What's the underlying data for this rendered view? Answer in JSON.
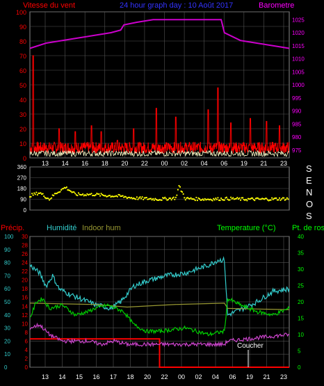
{
  "header": {
    "left_title": "Vitesse du vent",
    "center_title": "24 hour graph day : 10 Août 2017",
    "right_title": "Barometre"
  },
  "direction_letters": [
    "S",
    "E",
    "N",
    "O",
    "S"
  ],
  "colors": {
    "red": "#ff0000",
    "magenta": "#ff00ff",
    "blue": "#3333ff",
    "yellow": "#ffff00",
    "white": "#ffffff",
    "cyan": "#00e0e0",
    "green": "#00ff00",
    "olive": "#999933",
    "grid": "#8a8a8a"
  },
  "chart_data": [
    {
      "type": "line",
      "title": "24 hour graph day : 10 Août 2017",
      "x_tick_labels": [
        "13",
        "14",
        "16",
        "18",
        "20",
        "22",
        "00",
        "02",
        "04",
        "06",
        "19",
        "21",
        "23"
      ],
      "left_axis": {
        "label": "Vitesse du vent",
        "ticks": [
          0,
          10,
          20,
          30,
          40,
          50,
          60,
          70,
          80,
          90,
          100
        ],
        "range": [
          0,
          100
        ]
      },
      "right_axis": {
        "label": "Barometre",
        "ticks": [
          975,
          980,
          985,
          990,
          995,
          1000,
          1005,
          1010,
          1015,
          1020,
          1025
        ],
        "range": [
          972,
          1028
        ]
      },
      "series": [
        {
          "name": "Barometre",
          "color": "#cc00cc",
          "points": [
            [
              0,
              1014
            ],
            [
              5,
              1016
            ],
            [
              10,
              1017
            ],
            [
              15,
              1018
            ],
            [
              20,
              1019
            ],
            [
              25,
              1020
            ],
            [
              28,
              1021
            ],
            [
              29,
              1023
            ],
            [
              33,
              1024
            ],
            [
              38,
              1025
            ],
            [
              42,
              1025
            ],
            [
              50,
              1025
            ],
            [
              55,
              1025
            ],
            [
              59,
              1025
            ],
            [
              60,
              1020
            ],
            [
              65,
              1017
            ],
            [
              70,
              1016
            ],
            [
              75,
              1015
            ],
            [
              80,
              1014
            ]
          ]
        },
        {
          "name": "Vitesse du vent",
          "color": "#ff0000",
          "peaks": [
            [
              1,
              70
            ],
            [
              9,
              20
            ],
            [
              14,
              18
            ],
            [
              19,
              22
            ],
            [
              22,
              18
            ],
            [
              27,
              12
            ],
            [
              32,
              20
            ],
            [
              39,
              34
            ],
            [
              45,
              28
            ],
            [
              55,
              33
            ],
            [
              58,
              48
            ],
            [
              62,
              24
            ],
            [
              68,
              27
            ],
            [
              73,
              25
            ],
            [
              77,
              22
            ]
          ]
        }
      ]
    },
    {
      "type": "scatter",
      "y_ticks": [
        0,
        90,
        180,
        270,
        360
      ],
      "range": [
        0,
        360
      ],
      "series": [
        {
          "name": "S E N O S",
          "color": "#ffff00",
          "values": [
            [
              0,
              120
            ],
            [
              3,
              145
            ],
            [
              6,
              90
            ],
            [
              8,
              140
            ],
            [
              11,
              190
            ],
            [
              14,
              130
            ],
            [
              20,
              130
            ],
            [
              24,
              120
            ],
            [
              28,
              115
            ],
            [
              32,
              100
            ],
            [
              36,
              95
            ],
            [
              40,
              90
            ],
            [
              45,
              100
            ],
            [
              46,
              200
            ],
            [
              48,
              95
            ],
            [
              55,
              90
            ],
            [
              62,
              95
            ],
            [
              66,
              90
            ],
            [
              72,
              90
            ],
            [
              80,
              95
            ]
          ]
        }
      ]
    },
    {
      "type": "line",
      "legend": [
        "Précip.",
        "Humidité",
        "Indoor hum",
        "Temperature (°C)",
        "Pt. de rosée"
      ],
      "x_tick_labels": [
        "13",
        "14",
        "15",
        "16",
        "17",
        "18",
        "20",
        "22",
        "00",
        "02",
        "04",
        "06",
        "19",
        "21",
        "23"
      ],
      "annotation": "Coucher",
      "y_ticks_precip": [
        0,
        2,
        4,
        6,
        8,
        10,
        12,
        14,
        16,
        18,
        20,
        22,
        24,
        26,
        28,
        30
      ],
      "y_ticks_humidity": [
        0,
        10,
        20,
        30,
        40,
        50,
        60,
        70,
        80,
        90,
        100
      ],
      "y_ticks_temp": [
        0,
        5,
        10,
        15,
        20,
        25,
        30,
        35,
        40
      ],
      "series": [
        {
          "name": "Précip.",
          "color": "#ff0000",
          "points": [
            [
              0,
              6.5
            ],
            [
              40,
              6.5
            ],
            [
              40,
              0
            ],
            [
              80,
              0
            ]
          ]
        },
        {
          "name": "Humidité",
          "color": "#33cccc",
          "points": [
            [
              0,
              78
            ],
            [
              3,
              72
            ],
            [
              5,
              62
            ],
            [
              7,
              70
            ],
            [
              9,
              60
            ],
            [
              12,
              56
            ],
            [
              16,
              52
            ],
            [
              20,
              48
            ],
            [
              25,
              45
            ],
            [
              28,
              50
            ],
            [
              32,
              62
            ],
            [
              36,
              66
            ],
            [
              42,
              70
            ],
            [
              48,
              72
            ],
            [
              55,
              78
            ],
            [
              58,
              82
            ],
            [
              60,
              82
            ],
            [
              61,
              40
            ],
            [
              65,
              44
            ],
            [
              70,
              50
            ],
            [
              75,
              58
            ],
            [
              80,
              60
            ]
          ]
        },
        {
          "name": "Indoor hum",
          "color": "#999933",
          "points": [
            [
              0,
              49
            ],
            [
              20,
              48
            ],
            [
              30,
              46
            ],
            [
              45,
              48
            ],
            [
              60,
              49
            ],
            [
              61,
              45
            ],
            [
              80,
              44
            ]
          ]
        },
        {
          "name": "Temperature (°C)",
          "color": "#00cc00",
          "points": [
            [
              0,
              15
            ],
            [
              2,
              20
            ],
            [
              4,
              21
            ],
            [
              6,
              18
            ],
            [
              10,
              19
            ],
            [
              14,
              16
            ],
            [
              18,
              17
            ],
            [
              20,
              18
            ],
            [
              24,
              19
            ],
            [
              29,
              17
            ],
            [
              32,
              13
            ],
            [
              36,
              11
            ],
            [
              40,
              11
            ],
            [
              48,
              12
            ],
            [
              55,
              10
            ],
            [
              60,
              11
            ],
            [
              61,
              21
            ],
            [
              65,
              19
            ],
            [
              70,
              17
            ],
            [
              75,
              16
            ],
            [
              80,
              18
            ]
          ]
        },
        {
          "name": "Pt. de rosée",
          "color": "#cc44cc",
          "points": [
            [
              0,
              12
            ],
            [
              3,
              13
            ],
            [
              6,
              10
            ],
            [
              10,
              8
            ],
            [
              14,
              8
            ],
            [
              18,
              8
            ],
            [
              22,
              7
            ],
            [
              26,
              8
            ],
            [
              30,
              7
            ],
            [
              40,
              7
            ],
            [
              50,
              7
            ],
            [
              60,
              7
            ],
            [
              61,
              8
            ],
            [
              70,
              9
            ],
            [
              80,
              10
            ]
          ]
        }
      ]
    }
  ]
}
